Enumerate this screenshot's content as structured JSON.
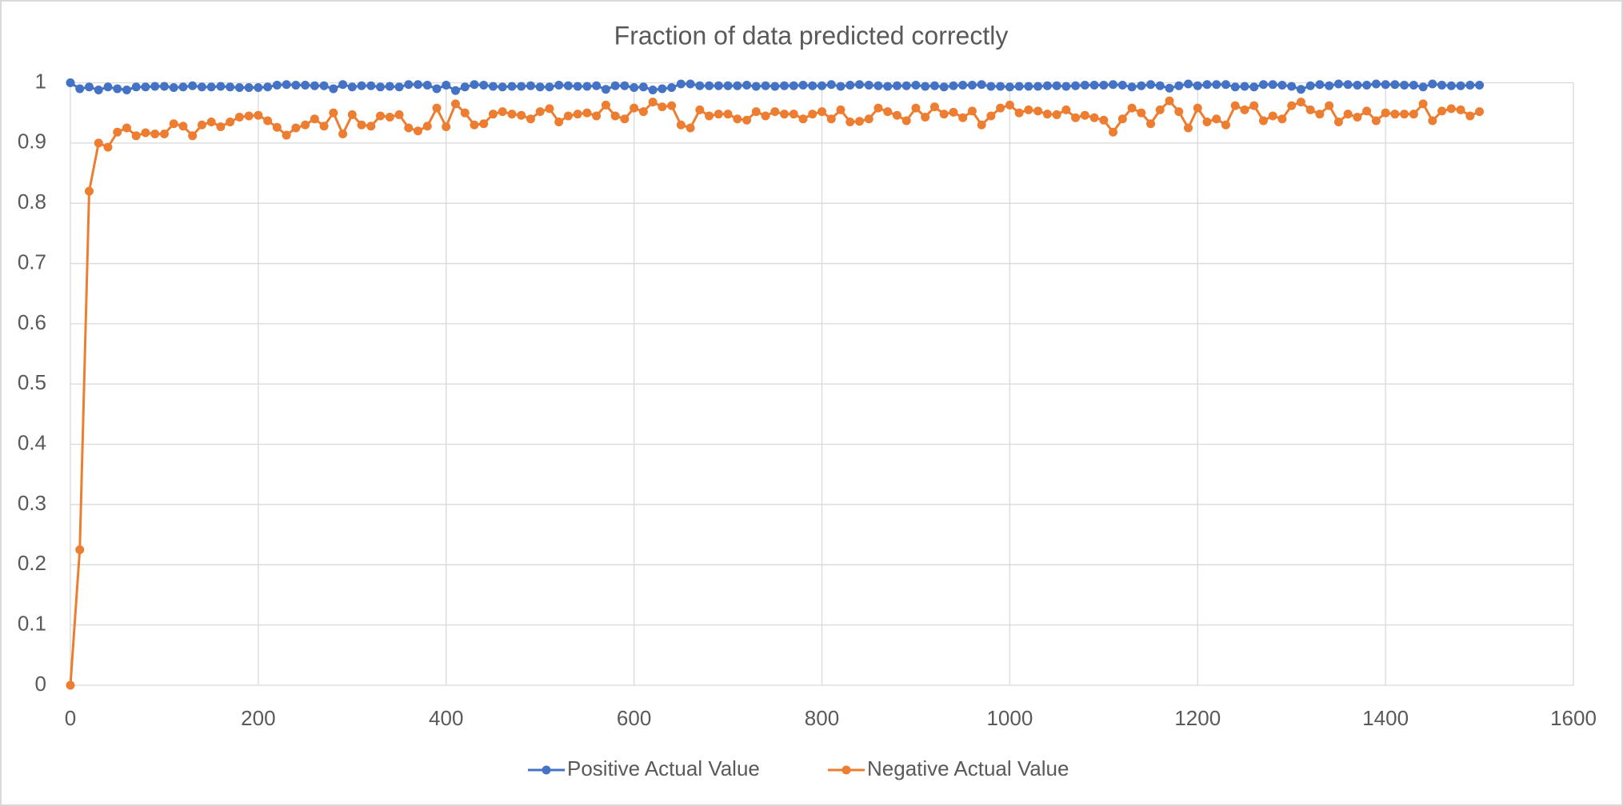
{
  "chart_data": {
    "type": "line",
    "title": "Fraction of data predicted correctly",
    "x": [
      0,
      10,
      20,
      30,
      40,
      50,
      60,
      70,
      80,
      90,
      100,
      110,
      120,
      130,
      140,
      150,
      160,
      170,
      180,
      190,
      200,
      210,
      220,
      230,
      240,
      250,
      260,
      270,
      280,
      290,
      300,
      310,
      320,
      330,
      340,
      350,
      360,
      370,
      380,
      390,
      400,
      410,
      420,
      430,
      440,
      450,
      460,
      470,
      480,
      490,
      500,
      510,
      520,
      530,
      540,
      550,
      560,
      570,
      580,
      590,
      600,
      610,
      620,
      630,
      640,
      650,
      660,
      670,
      680,
      690,
      700,
      710,
      720,
      730,
      740,
      750,
      760,
      770,
      780,
      790,
      800,
      810,
      820,
      830,
      840,
      850,
      860,
      870,
      880,
      890,
      900,
      910,
      920,
      930,
      940,
      950,
      960,
      970,
      980,
      990,
      1000,
      1010,
      1020,
      1030,
      1040,
      1050,
      1060,
      1070,
      1080,
      1090,
      1100,
      1110,
      1120,
      1130,
      1140,
      1150,
      1160,
      1170,
      1180,
      1190,
      1200,
      1210,
      1220,
      1230,
      1240,
      1250,
      1260,
      1270,
      1280,
      1290,
      1300,
      1310,
      1320,
      1330,
      1340,
      1350,
      1360,
      1370,
      1380,
      1390,
      1400,
      1410,
      1420,
      1430,
      1440,
      1450,
      1460,
      1470,
      1480,
      1490,
      1500
    ],
    "series": [
      {
        "name": "Positive Actual Value",
        "color": "#4472c4",
        "values": [
          1.0,
          0.99,
          0.993,
          0.988,
          0.993,
          0.99,
          0.988,
          0.993,
          0.993,
          0.994,
          0.994,
          0.992,
          0.993,
          0.995,
          0.993,
          0.993,
          0.994,
          0.993,
          0.992,
          0.992,
          0.992,
          0.993,
          0.996,
          0.997,
          0.996,
          0.996,
          0.995,
          0.995,
          0.99,
          0.997,
          0.993,
          0.995,
          0.995,
          0.993,
          0.994,
          0.993,
          0.997,
          0.997,
          0.996,
          0.99,
          0.996,
          0.987,
          0.993,
          0.997,
          0.996,
          0.994,
          0.993,
          0.994,
          0.994,
          0.995,
          0.993,
          0.993,
          0.996,
          0.995,
          0.994,
          0.994,
          0.995,
          0.989,
          0.995,
          0.995,
          0.992,
          0.993,
          0.988,
          0.99,
          0.992,
          0.998,
          0.998,
          0.995,
          0.995,
          0.995,
          0.995,
          0.995,
          0.996,
          0.994,
          0.995,
          0.994,
          0.995,
          0.995,
          0.996,
          0.995,
          0.995,
          0.997,
          0.994,
          0.996,
          0.997,
          0.996,
          0.995,
          0.994,
          0.995,
          0.995,
          0.996,
          0.994,
          0.995,
          0.993,
          0.995,
          0.996,
          0.996,
          0.997,
          0.994,
          0.994,
          0.993,
          0.994,
          0.994,
          0.994,
          0.995,
          0.995,
          0.994,
          0.995,
          0.996,
          0.996,
          0.996,
          0.997,
          0.996,
          0.993,
          0.995,
          0.997,
          0.995,
          0.991,
          0.995,
          0.998,
          0.995,
          0.997,
          0.997,
          0.997,
          0.993,
          0.994,
          0.993,
          0.997,
          0.997,
          0.996,
          0.994,
          0.989,
          0.995,
          0.997,
          0.995,
          0.998,
          0.997,
          0.996,
          0.996,
          0.998,
          0.997,
          0.997,
          0.996,
          0.996,
          0.993,
          0.998,
          0.996,
          0.995,
          0.995,
          0.996,
          0.996
        ]
      },
      {
        "name": "Negative Actual Value",
        "color": "#ed7d31",
        "values": [
          0,
          0.225,
          0.82,
          0.9,
          0.893,
          0.918,
          0.925,
          0.912,
          0.917,
          0.915,
          0.915,
          0.932,
          0.928,
          0.912,
          0.93,
          0.935,
          0.927,
          0.935,
          0.943,
          0.945,
          0.946,
          0.937,
          0.926,
          0.913,
          0.925,
          0.93,
          0.94,
          0.928,
          0.95,
          0.915,
          0.947,
          0.93,
          0.928,
          0.945,
          0.943,
          0.947,
          0.925,
          0.92,
          0.928,
          0.958,
          0.927,
          0.965,
          0.95,
          0.93,
          0.932,
          0.948,
          0.952,
          0.948,
          0.946,
          0.94,
          0.952,
          0.957,
          0.935,
          0.945,
          0.948,
          0.95,
          0.945,
          0.963,
          0.945,
          0.94,
          0.958,
          0.952,
          0.968,
          0.96,
          0.962,
          0.93,
          0.925,
          0.955,
          0.945,
          0.948,
          0.948,
          0.94,
          0.938,
          0.952,
          0.945,
          0.952,
          0.948,
          0.948,
          0.94,
          0.948,
          0.952,
          0.94,
          0.955,
          0.935,
          0.936,
          0.94,
          0.958,
          0.952,
          0.946,
          0.937,
          0.958,
          0.943,
          0.96,
          0.948,
          0.951,
          0.942,
          0.953,
          0.93,
          0.945,
          0.958,
          0.963,
          0.95,
          0.955,
          0.953,
          0.948,
          0.947,
          0.955,
          0.942,
          0.946,
          0.942,
          0.938,
          0.918,
          0.94,
          0.958,
          0.95,
          0.932,
          0.955,
          0.97,
          0.952,
          0.925,
          0.958,
          0.935,
          0.94,
          0.93,
          0.962,
          0.955,
          0.962,
          0.937,
          0.945,
          0.94,
          0.962,
          0.968,
          0.955,
          0.948,
          0.962,
          0.935,
          0.948,
          0.943,
          0.953,
          0.937,
          0.95,
          0.948,
          0.948,
          0.948,
          0.965,
          0.937,
          0.953,
          0.957,
          0.955,
          0.945,
          0.952
        ]
      }
    ],
    "xlim": [
      0,
      1600
    ],
    "xticks": [
      0,
      200,
      400,
      600,
      800,
      1000,
      1200,
      1400,
      1600
    ],
    "ylim": [
      0,
      1
    ],
    "yticks": [
      0,
      0.1,
      0.2,
      0.3,
      0.4,
      0.5,
      0.6,
      0.7,
      0.8,
      0.9,
      1
    ],
    "grid": true,
    "legend": "bottom"
  }
}
